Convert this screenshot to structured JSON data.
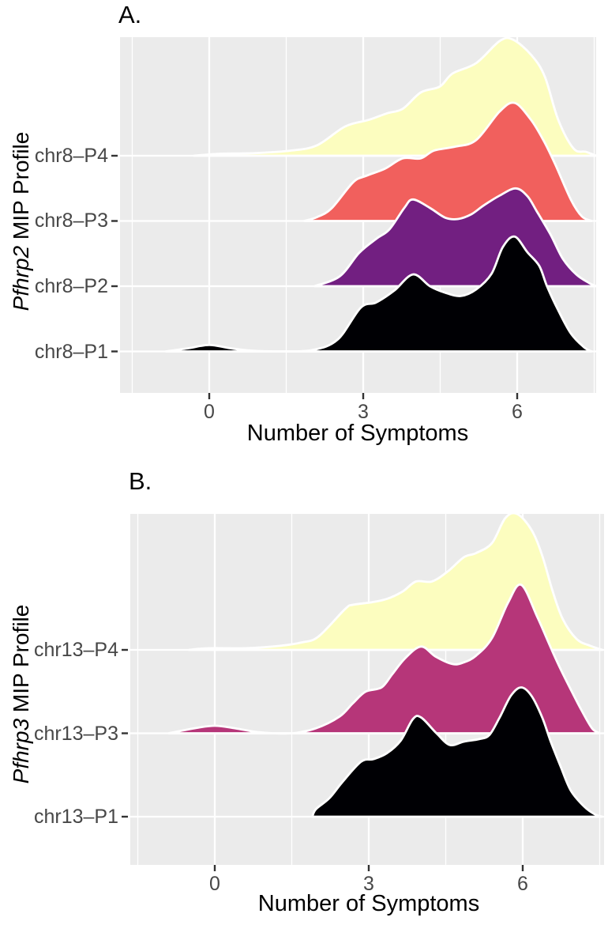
{
  "chart_data": [
    {
      "type": "ridgeline",
      "panel_label": "A.",
      "y_axis_label": {
        "italic": "Pfhrp2",
        "rest": " MIP Profile"
      },
      "x_axis_label": "Number of Symptoms",
      "x_ticks": [
        "0",
        "3",
        "6"
      ],
      "x_tick_values": [
        0,
        3,
        6
      ],
      "x_minor_gridlines": [
        -1.5,
        1.5,
        4.5,
        7.5
      ],
      "xlim": [
        -1.75,
        7.55
      ],
      "categories_top_to_bottom": [
        "chr8–P4",
        "chr8–P3",
        "chr8–P2",
        "chr8–P1"
      ],
      "series": [
        {
          "name": "chr8–P4",
          "color": "#FCFDBF",
          "points": [
            [
              -0.3,
              0
            ],
            [
              0.2,
              0.03
            ],
            [
              0.9,
              0.04
            ],
            [
              1.6,
              0.08
            ],
            [
              2.1,
              0.16
            ],
            [
              2.65,
              0.45
            ],
            [
              3.11,
              0.55
            ],
            [
              3.46,
              0.65
            ],
            [
              3.77,
              0.72
            ],
            [
              4.12,
              0.97
            ],
            [
              4.49,
              1.06
            ],
            [
              4.74,
              1.26
            ],
            [
              5.2,
              1.42
            ],
            [
              5.66,
              1.76
            ],
            [
              5.92,
              1.78
            ],
            [
              6.28,
              1.54
            ],
            [
              6.54,
              1.21
            ],
            [
              6.8,
              0.55
            ],
            [
              7.1,
              0.11
            ],
            [
              7.34,
              0.06
            ],
            [
              7.54,
              0
            ]
          ]
        },
        {
          "name": "chr8–P3",
          "color": "#F1605D",
          "points": [
            [
              1.85,
              0
            ],
            [
              2.1,
              0.06
            ],
            [
              2.38,
              0.19
            ],
            [
              2.8,
              0.59
            ],
            [
              3.05,
              0.69
            ],
            [
              3.42,
              0.8
            ],
            [
              3.77,
              0.96
            ],
            [
              4.12,
              0.96
            ],
            [
              4.38,
              1.08
            ],
            [
              4.8,
              1.14
            ],
            [
              5.2,
              1.24
            ],
            [
              5.66,
              1.68
            ],
            [
              5.95,
              1.81
            ],
            [
              6.26,
              1.56
            ],
            [
              6.51,
              1.24
            ],
            [
              6.74,
              0.87
            ],
            [
              7.05,
              0.32
            ],
            [
              7.26,
              0.07
            ],
            [
              7.45,
              0
            ]
          ]
        },
        {
          "name": "chr8–P2",
          "color": "#721F81",
          "points": [
            [
              2.05,
              0
            ],
            [
              2.54,
              0.15
            ],
            [
              2.92,
              0.51
            ],
            [
              3.26,
              0.73
            ],
            [
              3.51,
              0.87
            ],
            [
              3.8,
              1.2
            ],
            [
              3.97,
              1.33
            ],
            [
              4.3,
              1.2
            ],
            [
              4.6,
              1.05
            ],
            [
              4.85,
              1.03
            ],
            [
              5.1,
              1.1
            ],
            [
              5.35,
              1.24
            ],
            [
              5.66,
              1.39
            ],
            [
              5.97,
              1.5
            ],
            [
              6.2,
              1.38
            ],
            [
              6.38,
              1.15
            ],
            [
              6.65,
              0.79
            ],
            [
              6.89,
              0.42
            ],
            [
              7.15,
              0.18
            ],
            [
              7.4,
              0.05
            ],
            [
              7.54,
              0
            ]
          ]
        },
        {
          "name": "chr8–P1",
          "color": "#000004",
          "points": [
            [
              -0.85,
              0
            ],
            [
              -0.4,
              0.05
            ],
            [
              0,
              0.1
            ],
            [
              0.4,
              0.05
            ],
            [
              0.85,
              0.01
            ],
            [
              1.4,
              0
            ],
            [
              2.0,
              0.02
            ],
            [
              2.5,
              0.18
            ],
            [
              2.95,
              0.67
            ],
            [
              3.25,
              0.75
            ],
            [
              3.6,
              0.93
            ],
            [
              3.97,
              1.18
            ],
            [
              4.3,
              1.0
            ],
            [
              4.6,
              0.9
            ],
            [
              4.9,
              0.85
            ],
            [
              5.2,
              0.95
            ],
            [
              5.5,
              1.19
            ],
            [
              5.72,
              1.6
            ],
            [
              5.95,
              1.76
            ],
            [
              6.2,
              1.52
            ],
            [
              6.43,
              1.31
            ],
            [
              6.58,
              1.0
            ],
            [
              6.8,
              0.63
            ],
            [
              7.05,
              0.27
            ],
            [
              7.31,
              0.06
            ],
            [
              7.45,
              0
            ]
          ]
        }
      ]
    },
    {
      "type": "ridgeline",
      "panel_label": "B.",
      "y_axis_label": {
        "italic": "Pfhrp3",
        "rest": " MIP Profile"
      },
      "x_axis_label": "Number of Symptoms",
      "x_ticks": [
        "0",
        "3",
        "6"
      ],
      "x_tick_values": [
        0,
        3,
        6
      ],
      "x_minor_gridlines": [
        -1.5,
        1.5,
        4.5,
        7.5
      ],
      "xlim": [
        -1.65,
        7.6
      ],
      "categories_top_to_bottom": [
        "chr13–P4",
        "chr13–P3",
        "chr13–P1"
      ],
      "series": [
        {
          "name": "chr13–P4",
          "color": "#FCFDBF",
          "points": [
            [
              -0.5,
              0
            ],
            [
              -0.1,
              0.02
            ],
            [
              0.6,
              0.02
            ],
            [
              1.3,
              0.05
            ],
            [
              1.7,
              0.09
            ],
            [
              2.02,
              0.16
            ],
            [
              2.54,
              0.49
            ],
            [
              2.69,
              0.54
            ],
            [
              3.05,
              0.57
            ],
            [
              3.35,
              0.61
            ],
            [
              3.66,
              0.7
            ],
            [
              3.92,
              0.82
            ],
            [
              4.23,
              0.82
            ],
            [
              4.54,
              0.94
            ],
            [
              4.85,
              1.11
            ],
            [
              5.09,
              1.16
            ],
            [
              5.4,
              1.28
            ],
            [
              5.66,
              1.58
            ],
            [
              5.89,
              1.63
            ],
            [
              6.17,
              1.44
            ],
            [
              6.38,
              1.13
            ],
            [
              6.58,
              0.71
            ],
            [
              6.78,
              0.37
            ],
            [
              7.05,
              0.13
            ],
            [
              7.31,
              0.05
            ],
            [
              7.55,
              0
            ]
          ]
        },
        {
          "name": "chr13–P3",
          "color": "#B63679",
          "points": [
            [
              -0.9,
              0
            ],
            [
              -0.4,
              0.06
            ],
            [
              0,
              0.09
            ],
            [
              0.4,
              0.06
            ],
            [
              0.9,
              0.01
            ],
            [
              1.5,
              0
            ],
            [
              1.97,
              0.06
            ],
            [
              2.43,
              0.2
            ],
            [
              2.69,
              0.36
            ],
            [
              2.94,
              0.5
            ],
            [
              3.25,
              0.55
            ],
            [
              3.46,
              0.71
            ],
            [
              3.71,
              0.9
            ],
            [
              4.02,
              1.04
            ],
            [
              4.3,
              0.92
            ],
            [
              4.63,
              0.83
            ],
            [
              4.85,
              0.85
            ],
            [
              5.09,
              0.93
            ],
            [
              5.4,
              1.14
            ],
            [
              5.71,
              1.56
            ],
            [
              5.97,
              1.78
            ],
            [
              6.28,
              1.4
            ],
            [
              6.48,
              1.12
            ],
            [
              6.69,
              0.83
            ],
            [
              6.94,
              0.52
            ],
            [
              7.15,
              0.27
            ],
            [
              7.35,
              0.06
            ],
            [
              7.5,
              0
            ]
          ]
        },
        {
          "name": "chr13–P1",
          "color": "#000004",
          "points": [
            [
              1.9,
              0
            ],
            [
              1.97,
              0.09
            ],
            [
              2.23,
              0.22
            ],
            [
              2.48,
              0.41
            ],
            [
              2.85,
              0.66
            ],
            [
              3.09,
              0.69
            ],
            [
              3.35,
              0.76
            ],
            [
              3.62,
              0.91
            ],
            [
              3.86,
              1.17
            ],
            [
              4.02,
              1.19
            ],
            [
              4.32,
              1.0
            ],
            [
              4.58,
              0.86
            ],
            [
              4.85,
              0.9
            ],
            [
              5.15,
              0.93
            ],
            [
              5.35,
              0.98
            ],
            [
              5.55,
              1.19
            ],
            [
              5.77,
              1.45
            ],
            [
              5.97,
              1.55
            ],
            [
              6.17,
              1.45
            ],
            [
              6.38,
              1.19
            ],
            [
              6.54,
              0.91
            ],
            [
              6.74,
              0.6
            ],
            [
              6.94,
              0.31
            ],
            [
              7.2,
              0.12
            ],
            [
              7.4,
              0.03
            ],
            [
              7.55,
              0
            ]
          ]
        }
      ]
    }
  ],
  "style": {
    "panel_background": "#EBEBEB",
    "grid_color": "#FFFFFF",
    "ridge_outline_color": "#FFFFFF",
    "axis_text_color": "#474747",
    "title_text_color": "#000000",
    "tick_mark_color": "#333333"
  }
}
